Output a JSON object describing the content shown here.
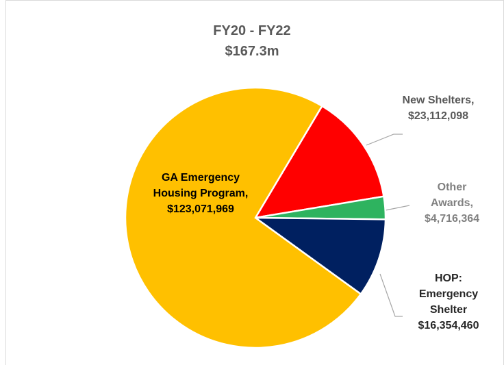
{
  "chart_data": {
    "type": "pie",
    "title": "FY20 - FY22",
    "subtitle": "$167.3m",
    "categories": [
      "New Shelters,",
      "Other Awards,",
      "HOP: Emergency Shelter",
      "GA Emergency Housing Program,"
    ],
    "values": [
      23112098,
      4716364,
      16354460,
      123071969
    ],
    "value_labels": [
      "$23,112,098",
      "$4,716,364",
      "$16,354,460",
      "$123,071,969"
    ],
    "colors": [
      "#ff0000",
      "#2eb35f",
      "#002060",
      "#ffc000"
    ]
  }
}
